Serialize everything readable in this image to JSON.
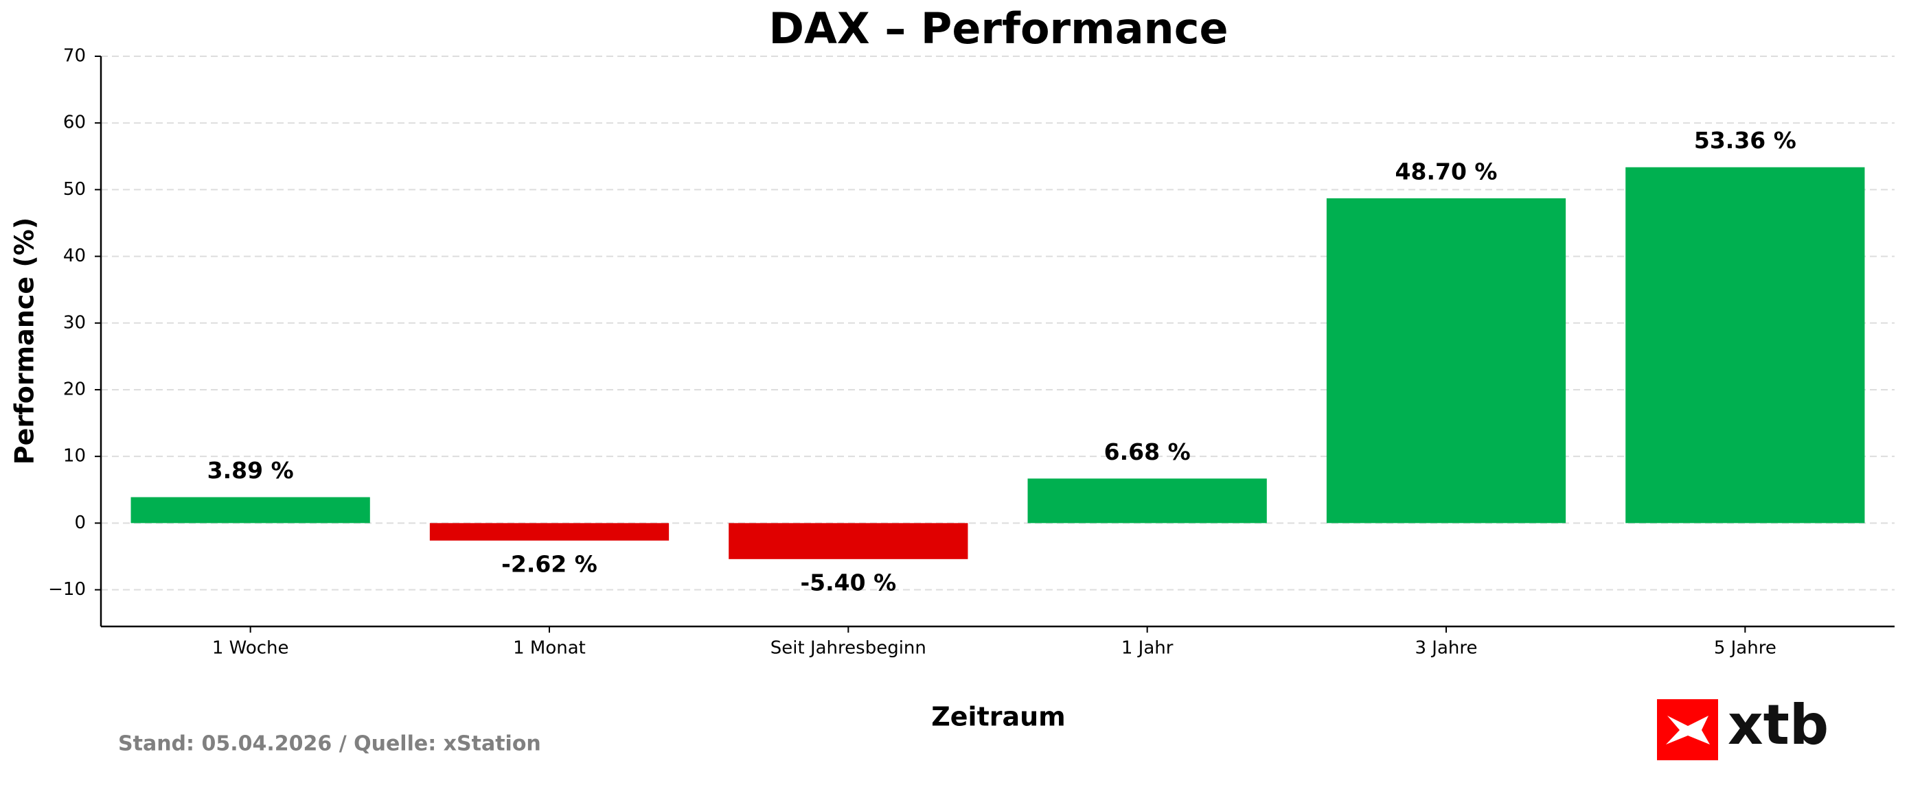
{
  "chart_data": {
    "type": "bar",
    "title": "DAX – Performance",
    "y_label": "Performance (%)",
    "x_label": "Zeitraum",
    "footnote": "Stand: 05.04.2026 / Quelle: xStation",
    "logo": "xtb",
    "categories": [
      "1 Woche",
      "1 Monat",
      "Seit Jahresbeginn",
      "1 Jahr",
      "3 Jahre",
      "5 Jahre"
    ],
    "values": [
      3.89,
      -2.62,
      -5.4,
      6.68,
      48.7,
      53.36
    ],
    "value_labels": [
      "3.89 %",
      "-2.62 %",
      "-5.40 %",
      "6.68 %",
      "48.70 %",
      "53.36 %"
    ],
    "colors": [
      "#00b050",
      "#e00000",
      "#e00000",
      "#00b050",
      "#00b050",
      "#00b050"
    ],
    "ylim": [
      -15.5,
      70
    ],
    "yticks": [
      {
        "value": -10,
        "label": "−10"
      },
      0,
      10,
      20,
      30,
      40,
      50,
      60,
      70
    ],
    "grid": true
  }
}
